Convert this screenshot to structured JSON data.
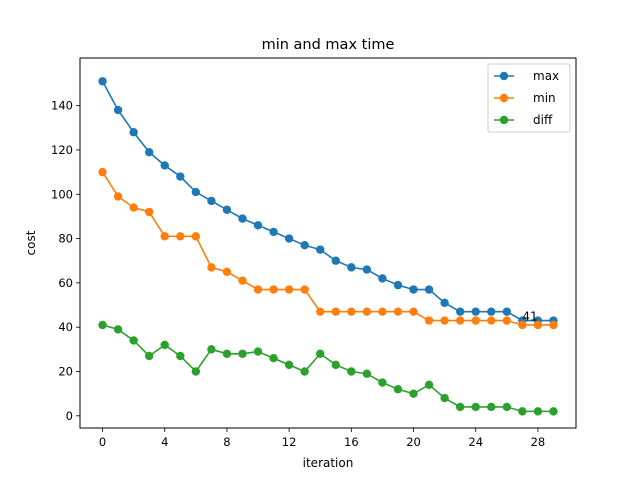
{
  "chart_data": {
    "type": "line",
    "title": "min and max time",
    "xlabel": "iteration",
    "ylabel": "cost",
    "xlim": [
      -1.45,
      30.45
    ],
    "ylim": [
      -5.5,
      161.5
    ],
    "xticks": [
      0,
      4,
      8,
      12,
      16,
      20,
      24,
      28
    ],
    "yticks": [
      0,
      20,
      40,
      60,
      80,
      100,
      120,
      140
    ],
    "grid": false,
    "legend_position": "top-right",
    "x": [
      0,
      1,
      2,
      3,
      4,
      5,
      6,
      7,
      8,
      9,
      10,
      11,
      12,
      13,
      14,
      15,
      16,
      17,
      18,
      19,
      20,
      21,
      22,
      23,
      24,
      25,
      26,
      27,
      28,
      29
    ],
    "series": [
      {
        "name": "max",
        "color": "#1f77b4",
        "values": [
          151,
          138,
          128,
          119,
          113,
          108,
          101,
          97,
          93,
          89,
          86,
          83,
          80,
          77,
          75,
          70,
          67,
          66,
          62,
          59,
          57,
          57,
          51,
          47,
          47,
          47,
          47,
          43,
          43,
          43
        ]
      },
      {
        "name": "min",
        "color": "#ff7f0e",
        "values": [
          110,
          99,
          94,
          92,
          81,
          81,
          81,
          67,
          65,
          61,
          57,
          57,
          57,
          57,
          47,
          47,
          47,
          47,
          47,
          47,
          47,
          43,
          43,
          43,
          43,
          43,
          43,
          41,
          41,
          41
        ]
      },
      {
        "name": "diff",
        "color": "#2ca02c",
        "values": [
          41,
          39,
          34,
          27,
          32,
          27,
          20,
          30,
          28,
          28,
          29,
          26,
          23,
          20,
          28,
          23,
          20,
          19,
          15,
          12,
          10,
          14,
          8,
          4,
          4,
          4,
          4,
          2,
          2,
          2
        ]
      }
    ],
    "annotations": [
      {
        "x": 27,
        "y": 43,
        "text": "41"
      }
    ]
  }
}
